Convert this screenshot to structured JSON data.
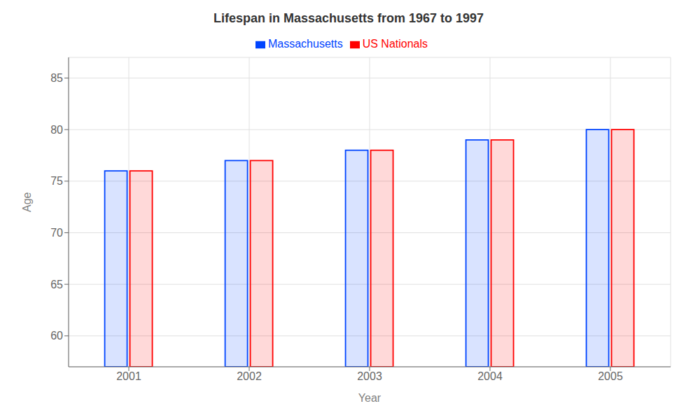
{
  "chart_data": {
    "type": "bar",
    "title": "Lifespan in Massachusetts from 1967 to 1997",
    "x_label": "Year",
    "y_label": "Age",
    "categories": [
      "2001",
      "2002",
      "2003",
      "2004",
      "2005"
    ],
    "series": [
      {
        "name": "Massachusetts",
        "color": "#0044ff",
        "values": [
          76,
          77,
          78,
          79,
          80
        ]
      },
      {
        "name": "US Nationals",
        "color": "#ff0000",
        "values": [
          76,
          77,
          78,
          79,
          80
        ]
      }
    ],
    "ylim": [
      57,
      87
    ],
    "yticks": [
      60,
      65,
      70,
      75,
      80,
      85
    ],
    "grid": true,
    "legend": "top"
  }
}
